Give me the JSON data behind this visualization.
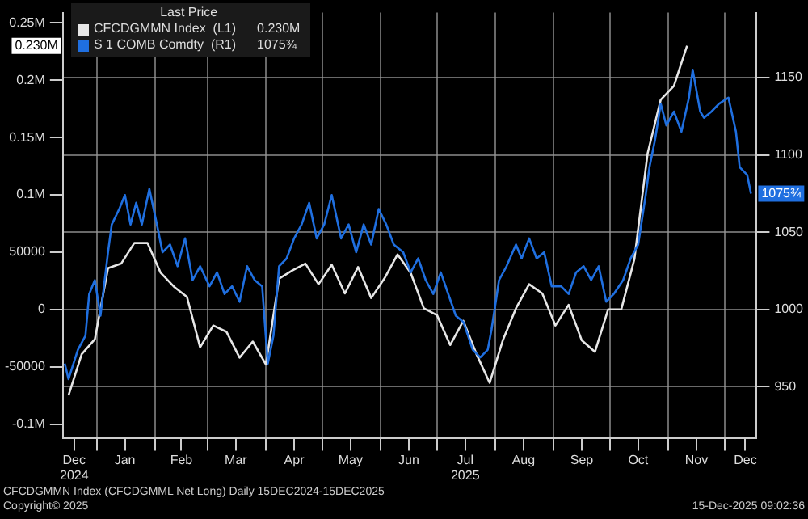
{
  "chart_data": {
    "type": "line",
    "legend_title": "Last Price",
    "legend": "top left",
    "grid": true,
    "marker": "none",
    "line_style": "solid",
    "xlim": [
      "2024-12-14",
      "2025-12-18"
    ],
    "xticks": [
      {
        "value": "2024-12-20",
        "label": "Dec\n2024"
      },
      {
        "value": "2025-01-01",
        "label": null
      },
      {
        "value": "2025-01-16",
        "label": "Jan"
      },
      {
        "value": "2025-02-01",
        "label": null
      },
      {
        "value": "2025-02-15",
        "label": "Feb"
      },
      {
        "value": "2025-03-01",
        "label": null
      },
      {
        "value": "2025-03-16",
        "label": "Mar"
      },
      {
        "value": "2025-04-01",
        "label": null
      },
      {
        "value": "2025-04-16",
        "label": "Apr"
      },
      {
        "value": "2025-05-01",
        "label": null
      },
      {
        "value": "2025-05-16",
        "label": "May"
      },
      {
        "value": "2025-06-01",
        "label": null
      },
      {
        "value": "2025-06-16",
        "label": "Jun"
      },
      {
        "value": "2025-07-01",
        "label": null
      },
      {
        "value": "2025-07-16",
        "label": "Jul\n2025"
      },
      {
        "value": "2025-08-01",
        "label": null
      },
      {
        "value": "2025-08-16",
        "label": "Aug"
      },
      {
        "value": "2025-09-01",
        "label": null
      },
      {
        "value": "2025-09-16",
        "label": "Sep"
      },
      {
        "value": "2025-10-01",
        "label": null
      },
      {
        "value": "2025-10-16",
        "label": "Oct"
      },
      {
        "value": "2025-11-01",
        "label": null
      },
      {
        "value": "2025-11-16",
        "label": "Nov"
      },
      {
        "value": "2025-12-01",
        "label": null
      },
      {
        "value": "2025-12-12",
        "label": "Dec"
      }
    ],
    "ylim": [
      -112000,
      259000
    ],
    "yticks": [
      {
        "value": -100000,
        "label": "-0.1M"
      },
      -50000,
      0,
      50000,
      {
        "value": 100000,
        "label": "0.1M"
      },
      {
        "value": 150000,
        "label": "0.15M"
      },
      {
        "value": 200000,
        "label": "0.2M"
      },
      {
        "value": 250000,
        "label": "0.25M"
      }
    ],
    "y2lim": [
      917,
      1192
    ],
    "y2ticks": [
      950,
      1000,
      1050,
      1100,
      1150
    ],
    "series": [
      {
        "name": "CFCDGMMN Index  (L1)",
        "color": "#e6e6e6",
        "x": [
          "2024-12-17",
          "2024-12-24",
          "2024-12-31",
          "2025-01-07",
          "2025-01-14",
          "2025-01-21",
          "2025-01-28",
          "2025-02-04",
          "2025-02-11",
          "2025-02-18",
          "2025-02-25",
          "2025-03-04",
          "2025-03-11",
          "2025-03-18",
          "2025-03-25",
          "2025-04-01",
          "2025-04-08",
          "2025-04-15",
          "2025-04-22",
          "2025-04-29",
          "2025-05-06",
          "2025-05-13",
          "2025-05-20",
          "2025-05-27",
          "2025-06-03",
          "2025-06-10",
          "2025-06-17",
          "2025-06-24",
          "2025-07-01",
          "2025-07-08",
          "2025-07-15",
          "2025-07-22",
          "2025-07-29",
          "2025-08-05",
          "2025-08-12",
          "2025-08-19",
          "2025-08-26",
          "2025-09-02",
          "2025-09-09",
          "2025-09-16",
          "2025-09-23",
          "2025-09-30",
          "2025-10-07",
          "2025-10-14",
          "2025-10-21",
          "2025-10-28",
          "2025-11-04",
          "2025-11-11"
        ],
        "values": [
          -75000,
          -39000,
          -26000,
          36000,
          40000,
          58000,
          58000,
          32000,
          20000,
          11000,
          -33000,
          -14000,
          -19500,
          -42000,
          -28000,
          -48000,
          27000,
          34000,
          40000,
          22000,
          39000,
          14000,
          37000,
          10000,
          27000,
          48000,
          32000,
          1000,
          -5000,
          -31000,
          -10000,
          -39000,
          -64000,
          -27000,
          1000,
          22000,
          14000,
          -14000,
          4000,
          -27000,
          -37000,
          0,
          0,
          44000,
          136000,
          183000,
          195000,
          230000
        ]
      },
      {
        "name": "S 1 COMB Comdty  (R1)",
        "color": "#1f6fe0",
        "axis": "y2",
        "x": [
          "2024-12-15",
          "2024-12-17",
          "2024-12-22",
          "2024-12-26",
          "2024-12-28",
          "2024-12-31",
          "2025-01-03",
          "2025-01-07",
          "2025-01-09",
          "2025-01-13",
          "2025-01-16",
          "2025-01-19",
          "2025-01-22",
          "2025-01-25",
          "2025-01-29",
          "2025-02-02",
          "2025-02-05",
          "2025-02-09",
          "2025-02-13",
          "2025-02-17",
          "2025-02-21",
          "2025-02-25",
          "2025-03-02",
          "2025-03-06",
          "2025-03-10",
          "2025-03-14",
          "2025-03-18",
          "2025-03-22",
          "2025-03-26",
          "2025-03-30",
          "2025-04-02",
          "2025-04-05",
          "2025-04-08",
          "2025-04-12",
          "2025-04-16",
          "2025-04-20",
          "2025-04-24",
          "2025-04-28",
          "2025-05-02",
          "2025-05-06",
          "2025-05-11",
          "2025-05-15",
          "2025-05-19",
          "2025-05-23",
          "2025-05-27",
          "2025-05-31",
          "2025-06-04",
          "2025-06-08",
          "2025-06-13",
          "2025-06-17",
          "2025-06-21",
          "2025-06-25",
          "2025-06-29",
          "2025-07-03",
          "2025-07-07",
          "2025-07-11",
          "2025-07-15",
          "2025-07-20",
          "2025-07-24",
          "2025-07-28",
          "2025-07-30",
          "2025-08-03",
          "2025-08-07",
          "2025-08-12",
          "2025-08-15",
          "2025-08-19",
          "2025-08-23",
          "2025-08-27",
          "2025-08-31",
          "2025-09-05",
          "2025-09-09",
          "2025-09-13",
          "2025-09-17",
          "2025-09-21",
          "2025-09-25",
          "2025-09-29",
          "2025-10-03",
          "2025-10-08",
          "2025-10-12",
          "2025-10-16",
          "2025-10-20",
          "2025-10-22",
          "2025-10-25",
          "2025-10-28",
          "2025-10-31",
          "2025-11-04",
          "2025-11-08",
          "2025-11-12",
          "2025-11-14",
          "2025-11-18",
          "2025-11-20",
          "2025-11-24",
          "2025-11-28",
          "2025-12-03",
          "2025-12-07",
          "2025-12-09",
          "2025-12-13",
          "2025-12-15"
        ],
        "values": [
          965,
          955,
          974,
          983,
          1010,
          1019,
          996,
          1037,
          1055,
          1065,
          1074,
          1055,
          1069,
          1055,
          1078,
          1055,
          1037,
          1042,
          1028,
          1046,
          1019,
          1028,
          1015,
          1024,
          1010,
          1015,
          1005,
          1028,
          1019,
          1015,
          965,
          983,
          1028,
          1033,
          1046,
          1055,
          1069,
          1046,
          1055,
          1074,
          1046,
          1055,
          1037,
          1055,
          1042,
          1065,
          1055,
          1042,
          1037,
          1024,
          1033,
          1019,
          1010,
          1024,
          1010,
          996,
          992,
          974,
          969,
          974,
          987,
          1019,
          1028,
          1042,
          1033,
          1046,
          1033,
          1037,
          1015,
          1015,
          1010,
          1024,
          1028,
          1019,
          1028,
          1005,
          1010,
          1019,
          1033,
          1042,
          1074,
          1092,
          1110,
          1133,
          1119,
          1128,
          1115,
          1137,
          1155,
          1128,
          1124,
          1128,
          1133,
          1137,
          1115,
          1092,
          1087,
          1075
        ]
      }
    ],
    "annotations": [
      "0.230M",
      "1075¾",
      "CFCDGMMN Index (CFCDGMML Net Long) Daily 15DEC2024-15DEC2025",
      "Copyright© 2025",
      "15-Dec-2025 09:02:36"
    ]
  }
}
